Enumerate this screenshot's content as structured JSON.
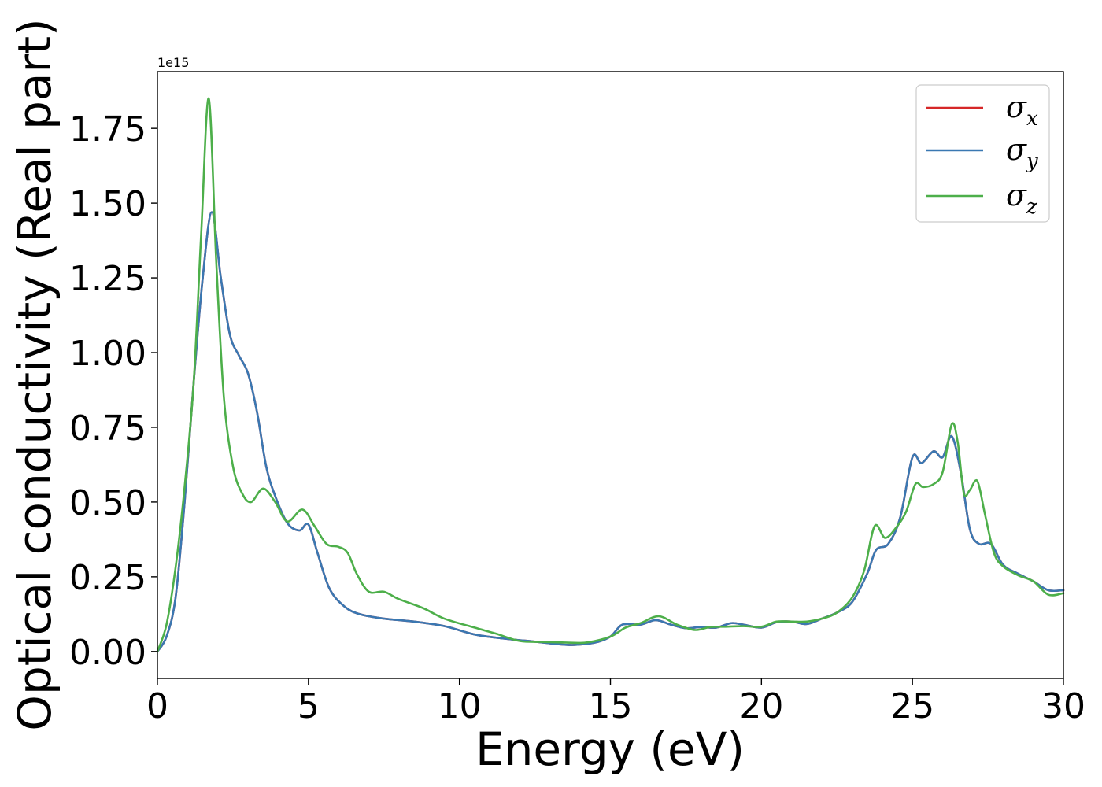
{
  "chart_data": {
    "type": "line",
    "title": "",
    "xlabel": "Energy (eV)",
    "ylabel": "Optical conductivity (Real part)",
    "y_offset_text": "1e15",
    "xlim": [
      0,
      30
    ],
    "ylim": [
      -0.09,
      1.94
    ],
    "x_ticks": [
      0,
      5,
      10,
      15,
      20,
      25,
      30
    ],
    "x_tick_labels": [
      "0",
      "5",
      "10",
      "15",
      "20",
      "25",
      "30"
    ],
    "y_ticks": [
      0,
      0.25,
      0.5,
      0.75,
      1.0,
      1.25,
      1.5,
      1.75
    ],
    "y_tick_labels": [
      "0.00",
      "0.25",
      "0.50",
      "0.75",
      "1.00",
      "1.25",
      "1.50",
      "1.75"
    ],
    "grid": false,
    "legend_position": "upper-right",
    "series": [
      {
        "name": "σx",
        "legend_symbol": "σ",
        "legend_subscript": "x",
        "color": "#d62728",
        "x": [
          0,
          0.3,
          0.6,
          0.9,
          1.2,
          1.5,
          1.8,
          2.1,
          2.4,
          2.7,
          3.0,
          3.3,
          3.6,
          3.9,
          4.3,
          4.7,
          5.0,
          5.3,
          5.7,
          6.2,
          6.7,
          7.5,
          8.5,
          9.5,
          10.5,
          11.5,
          12.5,
          13.2,
          13.8,
          14.5,
          15.0,
          15.4,
          16.0,
          16.5,
          17.0,
          17.5,
          18.0,
          18.5,
          19.0,
          19.4,
          20.0,
          20.5,
          21.0,
          21.5,
          22.0,
          22.5,
          23.0,
          23.5,
          23.8,
          24.2,
          24.6,
          25.0,
          25.3,
          25.7,
          26.0,
          26.3,
          26.6,
          26.9,
          27.2,
          27.6,
          28.0,
          28.5,
          29.0,
          29.5,
          30.0
        ],
        "y": [
          0.0,
          0.05,
          0.18,
          0.5,
          0.9,
          1.25,
          1.47,
          1.25,
          1.06,
          0.99,
          0.93,
          0.8,
          0.62,
          0.52,
          0.43,
          0.405,
          0.425,
          0.33,
          0.21,
          0.15,
          0.125,
          0.11,
          0.1,
          0.085,
          0.057,
          0.043,
          0.033,
          0.025,
          0.022,
          0.03,
          0.05,
          0.09,
          0.09,
          0.105,
          0.09,
          0.078,
          0.082,
          0.08,
          0.095,
          0.09,
          0.08,
          0.098,
          0.1,
          0.092,
          0.11,
          0.13,
          0.165,
          0.26,
          0.34,
          0.36,
          0.45,
          0.65,
          0.63,
          0.67,
          0.65,
          0.72,
          0.6,
          0.41,
          0.36,
          0.36,
          0.29,
          0.26,
          0.235,
          0.205,
          0.205
        ]
      },
      {
        "name": "σy",
        "legend_symbol": "σ",
        "legend_subscript": "y",
        "color": "#3a78b2",
        "x": [
          0,
          0.3,
          0.6,
          0.9,
          1.2,
          1.5,
          1.8,
          2.1,
          2.4,
          2.7,
          3.0,
          3.3,
          3.6,
          3.9,
          4.3,
          4.7,
          5.0,
          5.3,
          5.7,
          6.2,
          6.7,
          7.5,
          8.5,
          9.5,
          10.5,
          11.5,
          12.5,
          13.2,
          13.8,
          14.5,
          15.0,
          15.4,
          16.0,
          16.5,
          17.0,
          17.5,
          18.0,
          18.5,
          19.0,
          19.4,
          20.0,
          20.5,
          21.0,
          21.5,
          22.0,
          22.5,
          23.0,
          23.5,
          23.8,
          24.2,
          24.6,
          25.0,
          25.3,
          25.7,
          26.0,
          26.3,
          26.6,
          26.9,
          27.2,
          27.6,
          28.0,
          28.5,
          29.0,
          29.5,
          30.0
        ],
        "y": [
          0.0,
          0.05,
          0.18,
          0.5,
          0.9,
          1.25,
          1.47,
          1.25,
          1.06,
          0.99,
          0.93,
          0.8,
          0.62,
          0.52,
          0.43,
          0.405,
          0.425,
          0.33,
          0.21,
          0.15,
          0.125,
          0.11,
          0.1,
          0.085,
          0.057,
          0.043,
          0.033,
          0.025,
          0.022,
          0.03,
          0.05,
          0.09,
          0.09,
          0.105,
          0.09,
          0.078,
          0.082,
          0.08,
          0.095,
          0.09,
          0.08,
          0.098,
          0.1,
          0.092,
          0.11,
          0.13,
          0.165,
          0.26,
          0.34,
          0.36,
          0.45,
          0.65,
          0.63,
          0.67,
          0.65,
          0.72,
          0.6,
          0.41,
          0.36,
          0.36,
          0.29,
          0.26,
          0.235,
          0.205,
          0.205
        ]
      },
      {
        "name": "σz",
        "legend_symbol": "σ",
        "legend_subscript": "z",
        "color": "#4daf4a",
        "x": [
          0,
          0.3,
          0.6,
          0.9,
          1.2,
          1.45,
          1.7,
          1.95,
          2.2,
          2.5,
          2.8,
          3.1,
          3.5,
          3.9,
          4.3,
          4.8,
          5.2,
          5.6,
          6.0,
          6.3,
          6.6,
          7.0,
          7.5,
          8.0,
          8.8,
          9.5,
          10.5,
          11.2,
          12.0,
          12.8,
          13.5,
          14.2,
          15.0,
          15.5,
          16.0,
          16.6,
          17.2,
          17.8,
          18.3,
          18.8,
          19.4,
          20.0,
          20.5,
          21.0,
          21.5,
          22.0,
          22.5,
          23.0,
          23.4,
          23.75,
          24.1,
          24.5,
          24.8,
          25.1,
          25.35,
          25.7,
          26.0,
          26.3,
          26.5,
          26.7,
          26.9,
          27.15,
          27.4,
          27.7,
          28.0,
          28.5,
          29.0,
          29.5,
          30.0
        ],
        "y": [
          0.0,
          0.09,
          0.28,
          0.55,
          0.9,
          1.4,
          1.85,
          1.3,
          0.85,
          0.62,
          0.53,
          0.5,
          0.545,
          0.5,
          0.435,
          0.475,
          0.42,
          0.36,
          0.35,
          0.33,
          0.26,
          0.2,
          0.2,
          0.175,
          0.145,
          0.11,
          0.08,
          0.06,
          0.035,
          0.032,
          0.03,
          0.03,
          0.05,
          0.08,
          0.095,
          0.118,
          0.09,
          0.072,
          0.082,
          0.083,
          0.085,
          0.083,
          0.1,
          0.1,
          0.1,
          0.11,
          0.13,
          0.18,
          0.27,
          0.42,
          0.38,
          0.42,
          0.47,
          0.56,
          0.55,
          0.56,
          0.6,
          0.76,
          0.7,
          0.53,
          0.54,
          0.57,
          0.46,
          0.33,
          0.285,
          0.255,
          0.235,
          0.19,
          0.195
        ]
      }
    ]
  }
}
